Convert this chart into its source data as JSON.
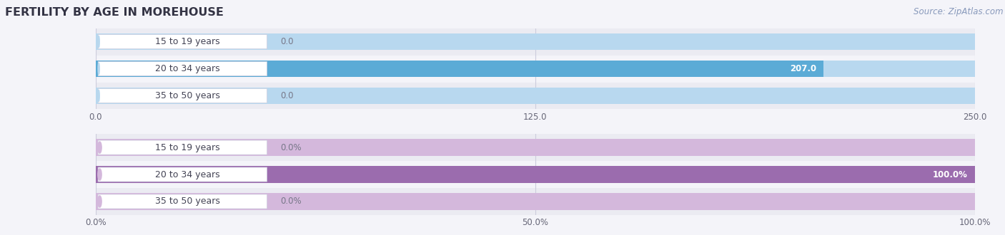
{
  "title": "FERTILITY BY AGE IN MOREHOUSE",
  "source": "Source: ZipAtlas.com",
  "top_chart": {
    "categories": [
      "15 to 19 years",
      "20 to 34 years",
      "35 to 50 years"
    ],
    "values": [
      0.0,
      207.0,
      0.0
    ],
    "xlim": [
      0,
      250.0
    ],
    "xticks": [
      0.0,
      125.0,
      250.0
    ],
    "xtick_labels": [
      "0.0",
      "125.0",
      "250.0"
    ],
    "bar_color_full": "#5babd6",
    "bar_color_light": "#b8d8ef",
    "value_labels": [
      "0.0",
      "207.0",
      "0.0"
    ],
    "value_label_color_inside": "#ffffff",
    "value_label_color_outside": "#777788"
  },
  "bottom_chart": {
    "categories": [
      "15 to 19 years",
      "20 to 34 years",
      "35 to 50 years"
    ],
    "values": [
      0.0,
      100.0,
      0.0
    ],
    "xlim": [
      0,
      100.0
    ],
    "xticks": [
      0.0,
      50.0,
      100.0
    ],
    "xtick_labels": [
      "0.0%",
      "50.0%",
      "100.0%"
    ],
    "bar_color_full": "#9b6cae",
    "bar_color_light": "#d4b8dc",
    "value_labels": [
      "0.0%",
      "100.0%",
      "0.0%"
    ],
    "value_label_color_inside": "#ffffff",
    "value_label_color_outside": "#777788"
  },
  "label_pill_bg": "#ffffff",
  "label_pill_border": "#ccccdd",
  "label_text_color": "#444455",
  "bar_height": 0.62,
  "row_bg_color_odd": "#ebebf2",
  "row_bg_color_even": "#f4f4f9",
  "fig_bg_color": "#f4f4f9",
  "title_color": "#333344",
  "title_fontsize": 11.5,
  "tick_fontsize": 8.5,
  "label_fontsize": 9,
  "value_fontsize": 8.5,
  "source_color": "#8899bb",
  "source_fontsize": 8.5,
  "grid_color": "#ccccdd"
}
